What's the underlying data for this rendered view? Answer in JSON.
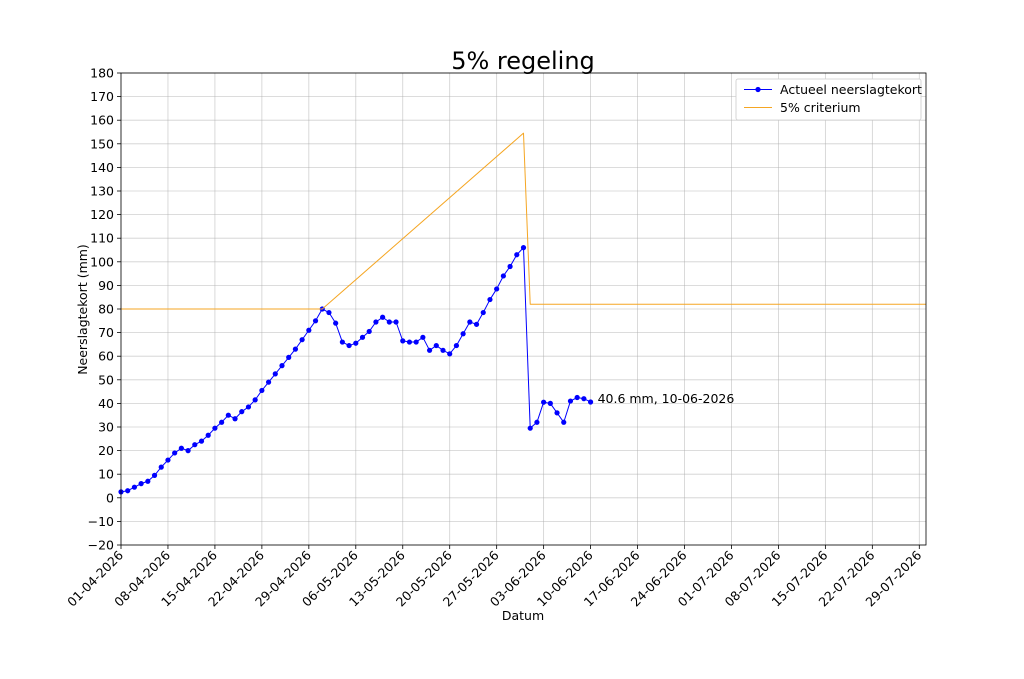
{
  "chart_data": {
    "type": "line",
    "title": "5% regeling",
    "xlabel": "Datum",
    "ylabel": "Neerslagtekort (mm)",
    "x_start": "2026-04-01",
    "x_end": "2026-07-30",
    "ylim": [
      -20,
      180
    ],
    "ytick_step": 10,
    "ytick_labels": [
      "−20",
      "−10",
      "0",
      "10",
      "20",
      "30",
      "40",
      "50",
      "60",
      "70",
      "80",
      "90",
      "100",
      "110",
      "120",
      "130",
      "140",
      "150",
      "160",
      "170",
      "180"
    ],
    "xtick_labels": [
      "01-04-2026",
      "08-04-2026",
      "15-04-2026",
      "22-04-2026",
      "29-04-2026",
      "06-05-2026",
      "13-05-2026",
      "20-05-2026",
      "27-05-2026",
      "03-06-2026",
      "10-06-2026",
      "17-06-2026",
      "24-06-2026",
      "01-07-2026",
      "08-07-2026",
      "15-07-2026",
      "22-07-2026",
      "29-07-2026"
    ],
    "xtick_dates": [
      "2026-04-01",
      "2026-04-08",
      "2026-04-15",
      "2026-04-22",
      "2026-04-29",
      "2026-05-06",
      "2026-05-13",
      "2026-05-20",
      "2026-05-27",
      "2026-06-03",
      "2026-06-10",
      "2026-06-17",
      "2026-06-24",
      "2026-07-01",
      "2026-07-08",
      "2026-07-15",
      "2026-07-22",
      "2026-07-29"
    ],
    "grid": true,
    "legend_position": "top-right",
    "series": [
      {
        "name": "Actueel neerslagtekort",
        "color": "#0000ff",
        "marker": "circle",
        "points": [
          [
            "2026-04-01",
            2.5
          ],
          [
            "2026-04-02",
            3
          ],
          [
            "2026-04-03",
            4.5
          ],
          [
            "2026-04-04",
            6
          ],
          [
            "2026-04-05",
            7
          ],
          [
            "2026-04-06",
            9.5
          ],
          [
            "2026-04-07",
            13
          ],
          [
            "2026-04-08",
            16
          ],
          [
            "2026-04-09",
            19
          ],
          [
            "2026-04-10",
            21
          ],
          [
            "2026-04-11",
            20
          ],
          [
            "2026-04-12",
            22.5
          ],
          [
            "2026-04-13",
            24
          ],
          [
            "2026-04-14",
            26.5
          ],
          [
            "2026-04-15",
            29.5
          ],
          [
            "2026-04-16",
            32
          ],
          [
            "2026-04-17",
            35
          ],
          [
            "2026-04-18",
            33.5
          ],
          [
            "2026-04-19",
            36.5
          ],
          [
            "2026-04-20",
            38.5
          ],
          [
            "2026-04-21",
            41.5
          ],
          [
            "2026-04-22",
            45.5
          ],
          [
            "2026-04-23",
            49
          ],
          [
            "2026-04-24",
            52.5
          ],
          [
            "2026-04-25",
            56
          ],
          [
            "2026-04-26",
            59.5
          ],
          [
            "2026-04-27",
            63
          ],
          [
            "2026-04-28",
            67
          ],
          [
            "2026-04-29",
            71
          ],
          [
            "2026-04-30",
            75
          ],
          [
            "2026-05-01",
            80
          ],
          [
            "2026-05-02",
            78.5
          ],
          [
            "2026-05-03",
            74
          ],
          [
            "2026-05-04",
            66
          ],
          [
            "2026-05-05",
            64.5
          ],
          [
            "2026-05-06",
            65.5
          ],
          [
            "2026-05-07",
            68
          ],
          [
            "2026-05-08",
            70.5
          ],
          [
            "2026-05-09",
            74.5
          ],
          [
            "2026-05-10",
            76.5
          ],
          [
            "2026-05-11",
            74.5
          ],
          [
            "2026-05-12",
            74.5
          ],
          [
            "2026-05-13",
            66.5
          ],
          [
            "2026-05-14",
            66
          ],
          [
            "2026-05-15",
            66
          ],
          [
            "2026-05-16",
            68
          ],
          [
            "2026-05-17",
            62.5
          ],
          [
            "2026-05-18",
            64.5
          ],
          [
            "2026-05-19",
            62.5
          ],
          [
            "2026-05-20",
            61
          ],
          [
            "2026-05-21",
            64.5
          ],
          [
            "2026-05-22",
            69.5
          ],
          [
            "2026-05-23",
            74.5
          ],
          [
            "2026-05-24",
            73.5
          ],
          [
            "2026-05-25",
            78.5
          ],
          [
            "2026-05-26",
            84
          ],
          [
            "2026-05-27",
            88.5
          ],
          [
            "2026-05-28",
            94
          ],
          [
            "2026-05-29",
            98
          ],
          [
            "2026-05-30",
            103
          ],
          [
            "2026-05-31",
            106
          ],
          [
            "2026-06-01",
            29.5
          ],
          [
            "2026-06-02",
            32
          ],
          [
            "2026-06-03",
            40.5
          ],
          [
            "2026-06-04",
            40
          ],
          [
            "2026-06-05",
            36
          ],
          [
            "2026-06-06",
            32
          ],
          [
            "2026-06-07",
            41
          ],
          [
            "2026-06-08",
            42.5
          ],
          [
            "2026-06-09",
            42
          ],
          [
            "2026-06-10",
            40.6
          ]
        ]
      },
      {
        "name": "5% criterium",
        "color": "#f5a623",
        "marker": "none",
        "points": [
          [
            "2026-04-01",
            80
          ],
          [
            "2026-05-01",
            80
          ],
          [
            "2026-05-31",
            154.5
          ],
          [
            "2026-06-01",
            82
          ],
          [
            "2026-07-30",
            82
          ]
        ]
      }
    ],
    "annotations": [
      {
        "text": "40.6 mm, 10-06-2026",
        "x": "2026-06-10",
        "y": 40.6
      }
    ]
  }
}
